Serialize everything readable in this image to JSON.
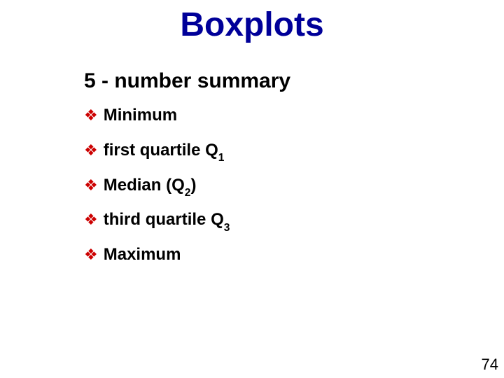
{
  "title": {
    "text": "Boxplots",
    "color": "#000099",
    "fontsize": 48
  },
  "subtitle": {
    "text": "5 - number summary",
    "color": "#000000",
    "fontsize": 30
  },
  "bullet": {
    "glyph": "❖",
    "color": "#cc0000",
    "fontsize": 22
  },
  "items": [
    {
      "text": "Minimum",
      "sub": ""
    },
    {
      "text": "first quartile Q",
      "sub": "1"
    },
    {
      "text": "Median (Q",
      "sub": "2",
      "after": ")"
    },
    {
      "text": "third quartile Q",
      "sub": "3"
    },
    {
      "text": "Maximum",
      "sub": ""
    }
  ],
  "item_style": {
    "color": "#000000",
    "fontsize": 24
  },
  "page_number": {
    "value": "74",
    "color": "#000000",
    "fontsize": 22
  }
}
